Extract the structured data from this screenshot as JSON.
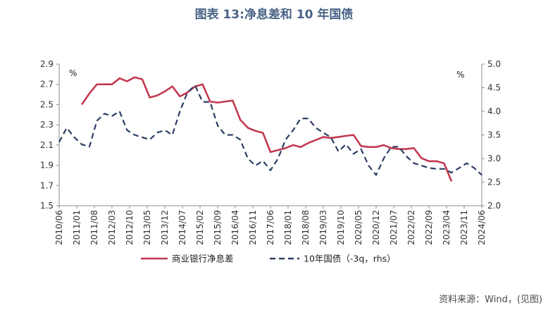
{
  "title": "图表 13:净息差和 10 年国债",
  "source": "资料来源：Wind，(见图)",
  "chart_data": {
    "type": "line",
    "x_tick_labels": [
      "2010/06",
      "2011/01",
      "2011/08",
      "2012/03",
      "2012/10",
      "2013/05",
      "2013/12",
      "2014/07",
      "2015/02",
      "2015/09",
      "2016/04",
      "2016/11",
      "2017/06",
      "2018/01",
      "2018/08",
      "2019/03",
      "2019/10",
      "2020/05",
      "2020/12",
      "2021/07",
      "2022/02",
      "2022/09",
      "2023/04",
      "2023/11",
      "2024/06"
    ],
    "left_axis": {
      "unit": "%",
      "ylim": [
        1.5,
        2.9
      ],
      "ticks": [
        "1.5",
        "1.7",
        "1.9",
        "2.1",
        "2.3",
        "2.5",
        "2.7",
        "2.9"
      ]
    },
    "right_axis": {
      "unit": "%",
      "ylim": [
        2.0,
        5.0
      ],
      "ticks": [
        "2.0",
        "2.5",
        "3.0",
        "3.5",
        "4.0",
        "4.5",
        "5.0"
      ]
    },
    "grid": false,
    "legend_position": "bottom",
    "series": [
      {
        "name": "商业银行净息差",
        "axis": "left",
        "color": "#c23a50",
        "style": "solid",
        "x": [
          "2011/03",
          "2011/06",
          "2011/09",
          "2011/12",
          "2012/03",
          "2012/06",
          "2012/09",
          "2012/12",
          "2013/03",
          "2013/06",
          "2013/09",
          "2013/12",
          "2014/03",
          "2014/06",
          "2014/09",
          "2014/12",
          "2015/03",
          "2015/06",
          "2015/09",
          "2015/12",
          "2016/03",
          "2016/06",
          "2016/09",
          "2016/12",
          "2017/03",
          "2017/06",
          "2017/09",
          "2017/12",
          "2018/03",
          "2018/06",
          "2018/09",
          "2018/12",
          "2019/03",
          "2019/06",
          "2019/09",
          "2019/12",
          "2020/03",
          "2020/06",
          "2020/09",
          "2020/12",
          "2021/03",
          "2021/06",
          "2021/09",
          "2021/12",
          "2022/03",
          "2022/06",
          "2022/09",
          "2022/12",
          "2023/03",
          "2023/06"
        ],
        "values": [
          2.5,
          2.61,
          2.7,
          2.7,
          2.7,
          2.76,
          2.73,
          2.77,
          2.75,
          2.57,
          2.59,
          2.63,
          2.68,
          2.58,
          2.62,
          2.68,
          2.7,
          2.53,
          2.52,
          2.53,
          2.54,
          2.35,
          2.27,
          2.24,
          2.22,
          2.03,
          2.05,
          2.07,
          2.1,
          2.08,
          2.12,
          2.15,
          2.18,
          2.17,
          2.18,
          2.19,
          2.2,
          2.09,
          2.08,
          2.08,
          2.1,
          2.07,
          2.06,
          2.06,
          2.07,
          1.97,
          1.94,
          1.94,
          1.92,
          1.74
        ]
      },
      {
        "name": "10年国债（-3q，rhs）",
        "axis": "right",
        "color": "#2c3e64",
        "style": "dashed",
        "x": [
          "2010/06",
          "2010/09",
          "2010/12",
          "2011/03",
          "2011/06",
          "2011/09",
          "2011/12",
          "2012/03",
          "2012/06",
          "2012/09",
          "2012/12",
          "2013/03",
          "2013/06",
          "2013/09",
          "2013/12",
          "2014/03",
          "2014/06",
          "2014/09",
          "2014/12",
          "2015/03",
          "2015/06",
          "2015/09",
          "2015/12",
          "2016/03",
          "2016/06",
          "2016/09",
          "2016/12",
          "2017/03",
          "2017/06",
          "2017/09",
          "2017/12",
          "2018/03",
          "2018/06",
          "2018/09",
          "2018/12",
          "2019/03",
          "2019/06",
          "2019/09",
          "2019/12",
          "2020/03",
          "2020/06",
          "2020/09",
          "2020/12",
          "2021/03",
          "2021/06",
          "2021/09",
          "2021/12",
          "2022/03",
          "2022/06",
          "2022/09",
          "2022/12",
          "2023/03",
          "2023/06",
          "2023/09",
          "2023/12",
          "2024/03",
          "2024/06"
        ],
        "values": [
          3.35,
          3.65,
          3.45,
          3.3,
          3.25,
          3.8,
          3.95,
          3.9,
          4.0,
          3.6,
          3.5,
          3.45,
          3.4,
          3.55,
          3.6,
          3.5,
          4.0,
          4.4,
          4.55,
          4.2,
          4.2,
          3.7,
          3.5,
          3.5,
          3.4,
          3.0,
          2.85,
          2.95,
          2.75,
          3.0,
          3.4,
          3.6,
          3.85,
          3.85,
          3.65,
          3.55,
          3.45,
          3.15,
          3.3,
          3.1,
          3.2,
          2.85,
          2.65,
          3.0,
          3.25,
          3.25,
          3.05,
          2.9,
          2.85,
          2.8,
          2.78,
          2.78,
          2.7,
          2.8,
          2.9,
          2.8,
          2.65
        ]
      }
    ]
  }
}
